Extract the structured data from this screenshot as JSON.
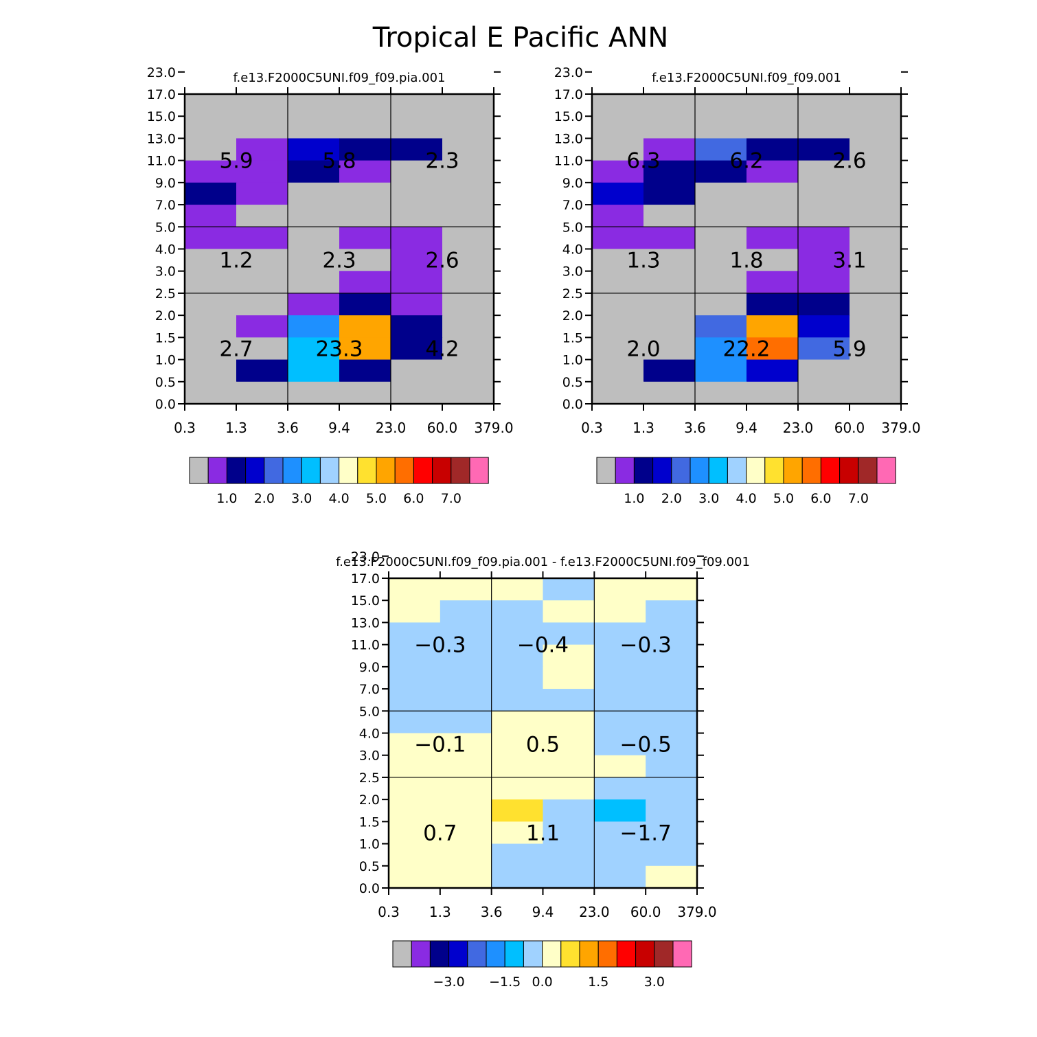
{
  "chart_data": {
    "type": "heatmap",
    "title": "Tropical E Pacific ANN",
    "x_tick_labels": [
      "0.3",
      "1.3",
      "3.6",
      "9.4",
      "23.0",
      "60.0",
      "379.0"
    ],
    "y_tick_labels": [
      "0.0",
      "0.5",
      "1.0",
      "1.5",
      "2.0",
      "2.5",
      "3.0",
      "4.0",
      "5.0",
      "7.0",
      "9.0",
      "11.0",
      "13.0",
      "15.0",
      "17.0",
      "23.0"
    ],
    "colors": {
      "abs": [
        "#bebebe",
        "#8a2be2",
        "#00008b",
        "#0000cd",
        "#4169e1",
        "#1e90ff",
        "#00bfff",
        "#a0d2ff",
        "#ffffc8",
        "#ffe12f",
        "#ffa500",
        "#ff6e00",
        "#ff0000",
        "#c80000",
        "#a02828",
        "#ff69b4"
      ],
      "diff": [
        "#bebebe",
        "#8a2be2",
        "#00008b",
        "#0000cd",
        "#4169e1",
        "#1e90ff",
        "#00bfff",
        "#a0d2ff",
        "#ffffc8",
        "#ffe12f",
        "#ffa500",
        "#ff6e00",
        "#ff0000",
        "#c80000",
        "#a02828",
        "#ff69b4"
      ]
    },
    "colorbar_abs_labels": [
      "1.0",
      "2.0",
      "3.0",
      "4.0",
      "5.0",
      "6.0",
      "7.0"
    ],
    "colorbar_diff_labels": [
      "-3.0",
      "-1.5",
      "0.0",
      "1.5",
      "3.0"
    ],
    "panels": [
      {
        "name": "test-case",
        "title": "f.e13.F2000C5UNI.f09_f09.pia.001",
        "colorbar": "abs",
        "grid": [
          [
            0,
            0,
            0,
            0,
            0,
            0
          ],
          [
            0,
            0,
            0,
            0,
            0,
            0
          ],
          [
            0,
            1,
            3,
            2,
            2,
            0
          ],
          [
            1,
            1,
            2,
            1,
            0,
            0
          ],
          [
            2,
            1,
            0,
            0,
            0,
            0
          ],
          [
            1,
            0,
            0,
            0,
            0,
            0
          ],
          [
            1,
            1,
            0,
            1,
            1,
            0
          ],
          [
            0,
            0,
            0,
            0,
            1,
            0
          ],
          [
            0,
            0,
            0,
            1,
            1,
            0
          ],
          [
            0,
            0,
            1,
            2,
            1,
            0
          ],
          [
            0,
            1,
            5,
            10,
            2,
            0
          ],
          [
            0,
            0,
            6,
            10,
            2,
            0
          ],
          [
            0,
            2,
            6,
            2,
            0,
            0
          ],
          [
            0,
            0,
            0,
            0,
            0,
            0
          ]
        ],
        "values": [
          [
            "5.9",
            "5.8",
            "2.3"
          ],
          [
            "1.2",
            "2.3",
            "2.6"
          ],
          [
            "2.7",
            "23.3",
            "4.2"
          ]
        ]
      },
      {
        "name": "control-case",
        "title": "f.e13.F2000C5UNI.f09_f09.001",
        "colorbar": "abs",
        "grid": [
          [
            0,
            0,
            0,
            0,
            0,
            0
          ],
          [
            0,
            0,
            0,
            0,
            0,
            0
          ],
          [
            0,
            1,
            4,
            2,
            2,
            0
          ],
          [
            1,
            2,
            2,
            1,
            0,
            0
          ],
          [
            3,
            2,
            0,
            0,
            0,
            0
          ],
          [
            1,
            0,
            0,
            0,
            0,
            0
          ],
          [
            1,
            1,
            0,
            1,
            1,
            0
          ],
          [
            0,
            0,
            0,
            0,
            1,
            0
          ],
          [
            0,
            0,
            0,
            1,
            1,
            0
          ],
          [
            0,
            0,
            0,
            2,
            2,
            0
          ],
          [
            0,
            0,
            4,
            10,
            3,
            0
          ],
          [
            0,
            0,
            5,
            11,
            4,
            0
          ],
          [
            0,
            2,
            5,
            3,
            0,
            0
          ],
          [
            0,
            0,
            0,
            0,
            0,
            0
          ]
        ],
        "values": [
          [
            "6.3",
            "6.2",
            "2.6"
          ],
          [
            "1.3",
            "1.8",
            "3.1"
          ],
          [
            "2.0",
            "22.2",
            "5.9"
          ]
        ]
      },
      {
        "name": "difference",
        "title": "f.e13.F2000C5UNI.f09_f09.pia.001 - f.e13.F2000C5UNI.f09_f09.001",
        "colorbar": "diff",
        "grid": [
          [
            8,
            8,
            8,
            7,
            8,
            8
          ],
          [
            8,
            7,
            7,
            8,
            8,
            7
          ],
          [
            7,
            7,
            7,
            7,
            7,
            7
          ],
          [
            7,
            7,
            7,
            8,
            7,
            7
          ],
          [
            7,
            7,
            7,
            8,
            7,
            7
          ],
          [
            7,
            7,
            7,
            7,
            7,
            7
          ],
          [
            7,
            7,
            8,
            8,
            7,
            7
          ],
          [
            8,
            8,
            8,
            8,
            7,
            7
          ],
          [
            8,
            8,
            8,
            8,
            8,
            7
          ],
          [
            8,
            8,
            8,
            8,
            7,
            7
          ],
          [
            8,
            8,
            9,
            7,
            6,
            7
          ],
          [
            8,
            8,
            8,
            7,
            7,
            7
          ],
          [
            8,
            8,
            7,
            7,
            7,
            7
          ],
          [
            8,
            8,
            7,
            7,
            7,
            8
          ]
        ],
        "values": [
          [
            "-0.3",
            "-0.4",
            "-0.3"
          ],
          [
            "-0.1",
            "0.5",
            "-0.5"
          ],
          [
            "0.7",
            "1.1",
            "-1.7"
          ]
        ]
      }
    ]
  }
}
